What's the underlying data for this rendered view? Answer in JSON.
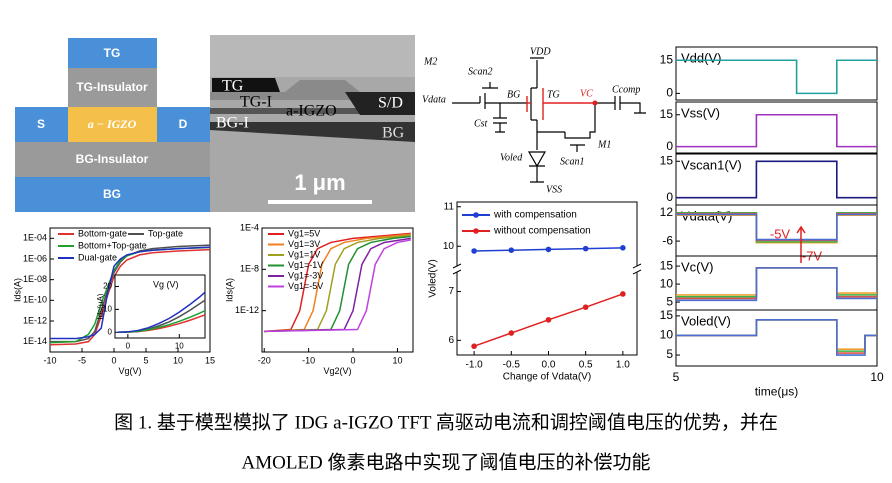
{
  "device": {
    "labels": [
      "TG",
      "TG-Insulator",
      "S",
      "a − IGZO",
      "D",
      "BG-Insulator",
      "BG"
    ]
  },
  "tem": {
    "labels": [
      "TG",
      "TG-I",
      "a-IGZO",
      "S/D",
      "BG-I",
      "BG"
    ],
    "scale_bar": "1 μm"
  },
  "circuit": {
    "labels": [
      "M2",
      "Scan2",
      "VDD",
      "Vdata",
      "BG",
      "TG",
      "VC",
      "Ccomp",
      "Cst",
      "M1",
      "Voled",
      "Scan1",
      "VSS"
    ]
  },
  "chart_data": [
    {
      "type": "line",
      "log_y": true,
      "xlabel": "Vg(V)",
      "ylabel": "Ids(A)",
      "xlim": [
        -10,
        15
      ],
      "xticks": [
        -10,
        -5,
        0,
        5,
        10,
        15
      ],
      "ylim": [
        1e-15,
        0.001
      ],
      "yticks": [
        {
          "value": 0.0001,
          "label": "1E-04"
        },
        {
          "value": 1e-06,
          "label": "1E-06"
        },
        {
          "value": 1e-08,
          "label": "1E-08"
        },
        {
          "value": 1e-10,
          "label": "1E-10"
        },
        {
          "value": 1e-12,
          "label": "1E-12"
        },
        {
          "value": 1e-14,
          "label": "1E-14"
        }
      ],
      "x": [
        -10,
        -6,
        -4,
        -3,
        -2,
        -1,
        0,
        1,
        2,
        4,
        6,
        10,
        15
      ],
      "series": [
        {
          "name": "Bottom-gate",
          "color": "#e03030",
          "values": [
            5e-15,
            6e-15,
            1e-14,
            5e-14,
            3e-12,
            3e-10,
            2e-08,
            2e-07,
            8e-07,
            2.5e-06,
            4e-06,
            6e-06,
            8e-06
          ]
        },
        {
          "name": "Top-gate",
          "color": "#505050",
          "values": [
            1e-14,
            1e-14,
            2e-14,
            1e-13,
            1e-11,
            1e-09,
            5e-08,
            5e-07,
            2e-06,
            6e-06,
            1e-05,
            1.6e-05,
            2.2e-05
          ]
        },
        {
          "name": "Bottom+Top-gate",
          "color": "#20a030",
          "values": [
            8e-15,
            1e-14,
            5e-14,
            5e-13,
            5e-11,
            2e-09,
            8e-08,
            7e-07,
            2e-06,
            5e-06,
            7e-06,
            1e-05,
            1.3e-05
          ]
        },
        {
          "name": "Dual-gate",
          "color": "#2030c0",
          "values": [
            2e-14,
            2e-14,
            3e-14,
            5e-14,
            2e-13,
            5e-10,
            2e-07,
            1e-06,
            2.5e-06,
            5e-06,
            7e-06,
            1e-05,
            1.4e-05
          ]
        }
      ]
    },
    {
      "type": "line",
      "title": "Vg (V)",
      "ylabel": "Ids(μA)",
      "xlim": [
        -2.5,
        15
      ],
      "xticks": [
        0,
        10
      ],
      "ylim": [
        -2.5,
        25
      ],
      "yticks": [
        0,
        10,
        20
      ],
      "x": [
        -2,
        0,
        2,
        4,
        6,
        8,
        10,
        12,
        14,
        15
      ],
      "series": [
        {
          "color": "#e03030",
          "values": [
            0,
            0.05,
            0.3,
            0.8,
            1.6,
            2.6,
            3.8,
            5.2,
            6.8,
            7.6
          ]
        },
        {
          "color": "#505050",
          "values": [
            0,
            0.1,
            0.5,
            1.4,
            2.8,
            4.5,
            6.8,
            9.5,
            12.5,
            14
          ]
        },
        {
          "color": "#20a030",
          "values": [
            0,
            0.1,
            0.4,
            1.1,
            2.1,
            3.3,
            4.8,
            6.5,
            8.4,
            9.4
          ]
        },
        {
          "color": "#2030c0",
          "values": [
            0,
            0.2,
            0.8,
            2,
            3.8,
            6,
            8.8,
            12,
            15.5,
            17.5
          ]
        }
      ]
    },
    {
      "type": "line",
      "log_y": true,
      "xlabel": "Vg2(V)",
      "ylabel": "Ids(A)",
      "xlim": [
        -20.5,
        13.5
      ],
      "xticks": [
        -20,
        -10,
        0,
        10
      ],
      "ylim": [
        1e-16,
        0.0001
      ],
      "yticks": [
        {
          "value": 0.0001,
          "label": "1E-4"
        },
        {
          "value": 1e-08,
          "label": "1E-8"
        },
        {
          "value": 1e-12,
          "label": "1E-12"
        }
      ],
      "series": [
        {
          "name": "Vg1=5V",
          "color": "#e02020",
          "x": [
            -20,
            -14,
            -12,
            -10,
            -8,
            -5,
            0,
            13
          ],
          "values": [
            1e-14,
            1.5e-14,
            1e-12,
            3e-08,
            1e-06,
            4e-06,
            1e-05,
            3e-05
          ]
        },
        {
          "name": "Vg1=3V",
          "color": "#f08020",
          "x": [
            -20,
            -11,
            -9,
            -7,
            -5,
            -2,
            3,
            13
          ],
          "values": [
            1e-14,
            1.5e-14,
            1e-12,
            3e-08,
            1e-06,
            4e-06,
            1e-05,
            2.5e-05
          ]
        },
        {
          "name": "Vg1=1V",
          "color": "#a0a020",
          "x": [
            -20,
            -8,
            -6,
            -4,
            -2,
            1,
            6,
            13
          ],
          "values": [
            1e-14,
            1.5e-14,
            1e-12,
            3e-08,
            1e-06,
            4e-06,
            1e-05,
            2e-05
          ]
        },
        {
          "name": "Vg1=-1V",
          "color": "#209030",
          "x": [
            -20,
            -5,
            -3,
            -1,
            1,
            4,
            9,
            13
          ],
          "values": [
            1e-14,
            1.5e-14,
            1e-12,
            3e-08,
            1e-06,
            4e-06,
            1e-05,
            1.5e-05
          ]
        },
        {
          "name": "Vg1=-3V",
          "color": "#8020a0",
          "x": [
            -20,
            -2,
            0,
            2,
            4,
            7,
            13
          ],
          "values": [
            1e-14,
            1.5e-14,
            1e-12,
            3e-08,
            1e-06,
            4e-06,
            1e-05
          ]
        },
        {
          "name": "Vg1=-5V",
          "color": "#c040e0",
          "x": [
            -20,
            1,
            3,
            5,
            7,
            10,
            13
          ],
          "values": [
            1e-14,
            1.5e-14,
            1e-12,
            3e-08,
            1e-06,
            4e-06,
            7e-06
          ]
        }
      ]
    },
    {
      "type": "line",
      "broken_y": true,
      "markers": true,
      "xlabel": "Change of Vdata(V)",
      "ylabel": "Voled(V)",
      "xlim": [
        -1.23,
        1.19
      ],
      "xticks": [
        {
          "value": -1,
          "label": "-1.0"
        },
        {
          "value": -0.5,
          "label": "-0.5"
        },
        {
          "value": 0,
          "label": "0.0"
        },
        {
          "value": 0.5,
          "label": "0.5"
        },
        {
          "value": 1,
          "label": "1.0"
        }
      ],
      "ylim": [
        5.7,
        7.4
      ],
      "yticks": [
        6,
        7
      ],
      "ylim_upper": [
        9.5,
        11.12
      ],
      "yticks_upper": [
        10,
        11
      ],
      "x": [
        -1,
        -0.5,
        0,
        0.5,
        1
      ],
      "series": [
        {
          "name": "with compensation",
          "color": "#1f3fd0",
          "values": [
            9.88,
            9.9,
            9.92,
            9.94,
            9.96
          ]
        },
        {
          "name": "without compensation",
          "color": "#e02020",
          "values": [
            5.88,
            6.15,
            6.42,
            6.68,
            6.95
          ]
        }
      ]
    },
    {
      "type": "line",
      "title": "Vdd(V)",
      "xlim": [
        5,
        10
      ],
      "ylim": [
        -3,
        21
      ],
      "yticks": [
        0,
        15
      ],
      "x": [
        5,
        8,
        8,
        9,
        9,
        10
      ],
      "series": [
        {
          "color": "#23a0a0",
          "values": [
            15,
            15,
            0,
            0,
            15,
            15
          ]
        }
      ]
    },
    {
      "type": "line",
      "title": "Vss(V)",
      "xlim": [
        5,
        10
      ],
      "ylim": [
        -3,
        21
      ],
      "yticks": [
        0,
        15
      ],
      "x": [
        5,
        7,
        7,
        9,
        9,
        10
      ],
      "series": [
        {
          "color": "#a030c0",
          "values": [
            0,
            0,
            15,
            15,
            0,
            0
          ]
        }
      ]
    },
    {
      "type": "line",
      "title": "Vscan1(V)",
      "xlim": [
        5,
        10
      ],
      "ylim": [
        -3,
        18
      ],
      "yticks": [
        0,
        15
      ],
      "x": [
        5,
        7,
        7,
        9,
        9,
        10
      ],
      "series": [
        {
          "color": "#1a1a80",
          "values": [
            0,
            0,
            15,
            15,
            0,
            0
          ]
        }
      ]
    },
    {
      "type": "line",
      "title": "Vdata(V)",
      "xlim": [
        5,
        10
      ],
      "ylim": [
        -15.5,
        17
      ],
      "yticks": [
        -6,
        12
      ],
      "x": [
        5,
        7,
        7,
        9,
        9,
        10
      ],
      "annotations": [
        "-5V",
        "-7V"
      ],
      "annotation_color": "#e02020",
      "series": [
        {
          "color": "#f0a030",
          "values": [
            10.5,
            10.5,
            -7,
            -7,
            10.5,
            10.5
          ]
        },
        {
          "color": "#3cb043",
          "values": [
            12,
            12,
            -6.5,
            -6.5,
            12,
            12
          ]
        },
        {
          "color": "#d9534f",
          "values": [
            11.5,
            11.5,
            -5.5,
            -5.5,
            11.5,
            11.5
          ]
        },
        {
          "color": "#4a6fd0",
          "values": [
            11,
            11,
            -5,
            -5,
            11,
            11
          ]
        }
      ]
    },
    {
      "type": "line",
      "title": "Vc(V)",
      "xlim": [
        5,
        10
      ],
      "ylim": [
        2.8,
        17.8
      ],
      "yticks": [
        5,
        10,
        15
      ],
      "x": [
        5,
        7,
        7,
        9,
        9,
        10
      ],
      "series": [
        {
          "color": "#f0a030",
          "values": [
            7,
            7,
            14.5,
            14.5,
            7.5,
            7.5
          ]
        },
        {
          "color": "#3cb043",
          "values": [
            6.5,
            6.5,
            14.5,
            14.5,
            7,
            7
          ]
        },
        {
          "color": "#d9534f",
          "values": [
            6,
            6,
            14.5,
            14.5,
            6.5,
            6.5
          ]
        },
        {
          "color": "#4a6fd0",
          "values": [
            5.5,
            5.5,
            14.5,
            14.5,
            6,
            6
          ]
        }
      ]
    },
    {
      "type": "line",
      "title": "Voled(V)",
      "xlabel": "time(μs)",
      "xlim": [
        5,
        10
      ],
      "xticks": [
        5,
        10
      ],
      "ylim": [
        2.2,
        16.5
      ],
      "yticks": [
        5,
        10,
        15
      ],
      "x": [
        5,
        7,
        7,
        9,
        9,
        9.7,
        9.7,
        10
      ],
      "series": [
        {
          "color": "#f0a030",
          "values": [
            10,
            10,
            14,
            14,
            6.5,
            6.5,
            10,
            10
          ]
        },
        {
          "color": "#3cb043",
          "values": [
            10,
            10,
            14,
            14,
            6,
            6,
            10,
            10
          ]
        },
        {
          "color": "#d9534f",
          "values": [
            10,
            10,
            14,
            14,
            5.5,
            5.5,
            10,
            10
          ]
        },
        {
          "color": "#4a6fd0",
          "values": [
            10,
            10,
            14,
            14,
            5,
            5,
            10,
            10
          ]
        }
      ]
    }
  ],
  "caption": [
    "图 1. 基于模型模拟了 IDG a-IGZO TFT 高驱动电流和调控阈值电压的优势，并在",
    "AMOLED 像素电路中实现了阈值电压的补偿功能"
  ]
}
